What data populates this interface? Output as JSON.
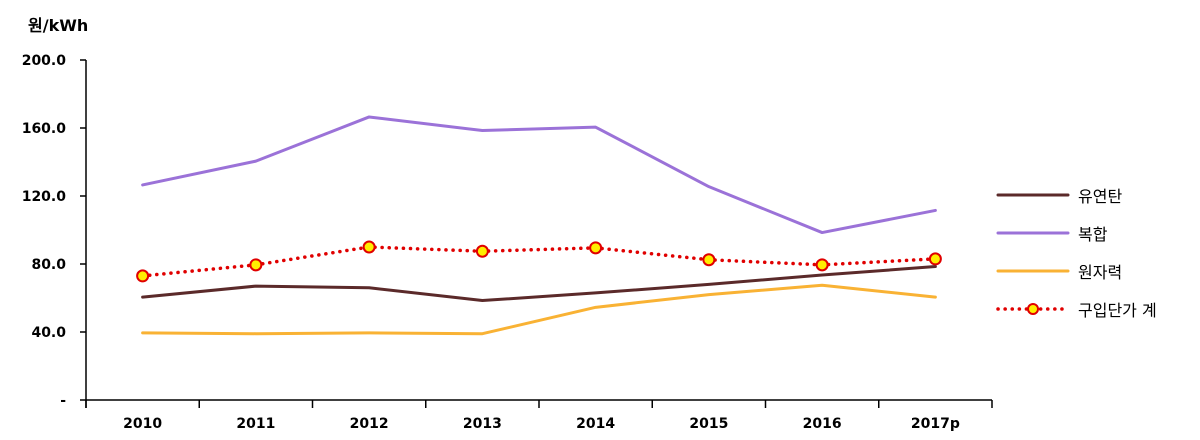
{
  "chart_data": {
    "type": "line",
    "unit_label": "원/kWh",
    "categories": [
      "2010",
      "2011",
      "2012",
      "2013",
      "2014",
      "2015",
      "2016",
      "2017p"
    ],
    "ylim": [
      0,
      200
    ],
    "y_ticks": [
      {
        "value": 0,
        "label": "-"
      },
      {
        "value": 40,
        "label": "40.0"
      },
      {
        "value": 80,
        "label": "80.0"
      },
      {
        "value": 120,
        "label": "120.0"
      },
      {
        "value": 160,
        "label": "160.0"
      },
      {
        "value": 200,
        "label": "200.0"
      }
    ],
    "grid": false,
    "legend_position": "right",
    "series": [
      {
        "name": "유연탄",
        "color": "#5b2a2a",
        "style": "solid",
        "marker": "none",
        "values": [
          60.5,
          67.0,
          66.0,
          58.5,
          63.0,
          68.0,
          73.5,
          78.5
        ]
      },
      {
        "name": "복합",
        "color": "#9b72d8",
        "style": "solid",
        "marker": "none",
        "values": [
          126.5,
          140.5,
          166.5,
          158.5,
          160.5,
          125.5,
          98.5,
          111.5
        ]
      },
      {
        "name": "원자력",
        "color": "#f9b234",
        "style": "solid",
        "marker": "none",
        "values": [
          39.5,
          39.0,
          39.5,
          39.0,
          54.5,
          62.0,
          67.5,
          60.5
        ]
      },
      {
        "name": "구입단가 계",
        "color": "#e00000",
        "style": "dotted",
        "marker": "circle",
        "marker_fill": "#ffee00",
        "marker_stroke": "#e00000",
        "values": [
          73.0,
          79.5,
          90.0,
          87.5,
          89.5,
          82.5,
          79.5,
          83.0
        ]
      }
    ]
  }
}
